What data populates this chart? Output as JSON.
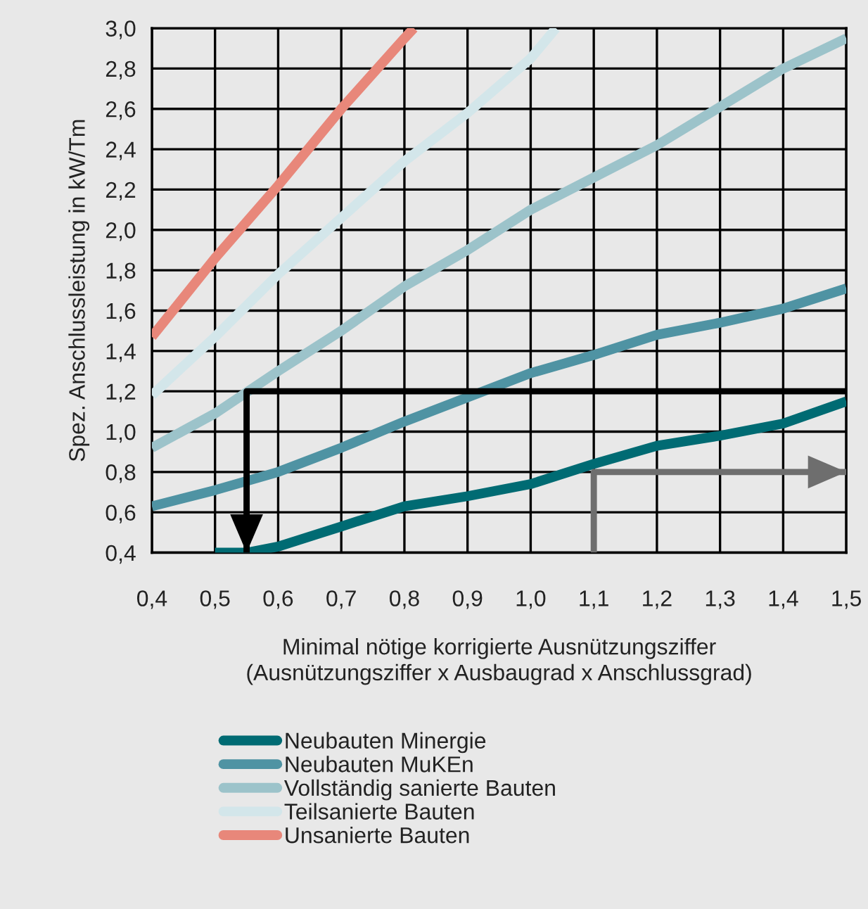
{
  "chart_data": {
    "type": "line",
    "xlabel": "Minimal nötige korrigierte Ausnützungsziffer\n(Ausnützungsziffer x Ausbaugrad x Anschlussgrad)",
    "ylabel": "Spez. Anschlussleistung in kW/Tm",
    "xlim": [
      0.4,
      1.5
    ],
    "ylim": [
      0.4,
      3.0
    ],
    "xticks": [
      {
        "value": 0.4,
        "label": "0,4"
      },
      {
        "value": 0.5,
        "label": "0,5"
      },
      {
        "value": 0.6,
        "label": "0,6"
      },
      {
        "value": 0.7,
        "label": "0,7"
      },
      {
        "value": 0.8,
        "label": "0,8"
      },
      {
        "value": 0.9,
        "label": "0,9"
      },
      {
        "value": 1.0,
        "label": "1,0"
      },
      {
        "value": 1.1,
        "label": "1,1"
      },
      {
        "value": 1.2,
        "label": "1,2"
      },
      {
        "value": 1.3,
        "label": "1,3"
      },
      {
        "value": 1.4,
        "label": "1,4"
      },
      {
        "value": 1.5,
        "label": "1,5"
      }
    ],
    "yticks": [
      {
        "value": 0.4,
        "label": "0,4"
      },
      {
        "value": 0.6,
        "label": "0,6"
      },
      {
        "value": 0.8,
        "label": "0,8"
      },
      {
        "value": 1.0,
        "label": "1,0"
      },
      {
        "value": 1.2,
        "label": "1,2"
      },
      {
        "value": 1.4,
        "label": "1,4"
      },
      {
        "value": 1.6,
        "label": "1,6"
      },
      {
        "value": 1.8,
        "label": "1,8"
      },
      {
        "value": 2.0,
        "label": "2,0"
      },
      {
        "value": 2.2,
        "label": "2,2"
      },
      {
        "value": 2.4,
        "label": "2,4"
      },
      {
        "value": 2.6,
        "label": "2,6"
      },
      {
        "value": 2.8,
        "label": "2,8"
      },
      {
        "value": 3.0,
        "label": "3,0"
      }
    ],
    "grid": true,
    "legend": "bottom",
    "marker": "none",
    "line_style": "solid",
    "series": [
      {
        "name": "Neubauten Minergie",
        "color": "#006b73",
        "x": [
          0.5,
          0.55,
          0.6,
          0.7,
          0.8,
          0.9,
          1.0,
          1.1,
          1.2,
          1.3,
          1.4,
          1.5
        ],
        "values": [
          0.4,
          0.4,
          0.43,
          0.53,
          0.63,
          0.68,
          0.74,
          0.84,
          0.93,
          0.98,
          1.04,
          1.15
        ]
      },
      {
        "name": "Neubauten MuKEn",
        "color": "#4f93a3",
        "x": [
          0.4,
          0.5,
          0.6,
          0.7,
          0.8,
          0.9,
          1.0,
          1.1,
          1.2,
          1.3,
          1.4,
          1.5
        ],
        "values": [
          0.63,
          0.71,
          0.8,
          0.92,
          1.05,
          1.17,
          1.29,
          1.38,
          1.48,
          1.54,
          1.61,
          1.71
        ]
      },
      {
        "name": "Vollständig sanierte Bauten",
        "color": "#9cc3ca",
        "x": [
          0.4,
          0.5,
          0.6,
          0.7,
          0.8,
          0.9,
          1.0,
          1.1,
          1.2,
          1.3,
          1.4,
          1.5
        ],
        "values": [
          0.92,
          1.09,
          1.3,
          1.5,
          1.72,
          1.9,
          2.1,
          2.26,
          2.42,
          2.61,
          2.8,
          2.95
        ]
      },
      {
        "name": "Teilsanierte Bauten",
        "color": "#d3e6ea",
        "x": [
          0.4,
          0.5,
          0.6,
          0.7,
          0.8,
          0.9,
          1.0,
          1.04
        ],
        "values": [
          1.18,
          1.47,
          1.78,
          2.06,
          2.34,
          2.58,
          2.85,
          3.0
        ]
      },
      {
        "name": "Unsanierte Bauten",
        "color": "#e8877a",
        "x": [
          0.4,
          0.5,
          0.6,
          0.7,
          0.8,
          0.815
        ],
        "values": [
          1.47,
          1.86,
          2.22,
          2.6,
          2.95,
          3.0
        ]
      },
      {
        "color": "#000000",
        "x": [
          1.5,
          0.55,
          0.55
        ],
        "values": [
          1.2,
          1.2,
          0.4
        ]
      },
      {
        "color": "#6e6e6e",
        "x": [
          1.1,
          1.1,
          1.5
        ],
        "values": [
          0.4,
          0.8,
          0.8
        ]
      }
    ]
  }
}
